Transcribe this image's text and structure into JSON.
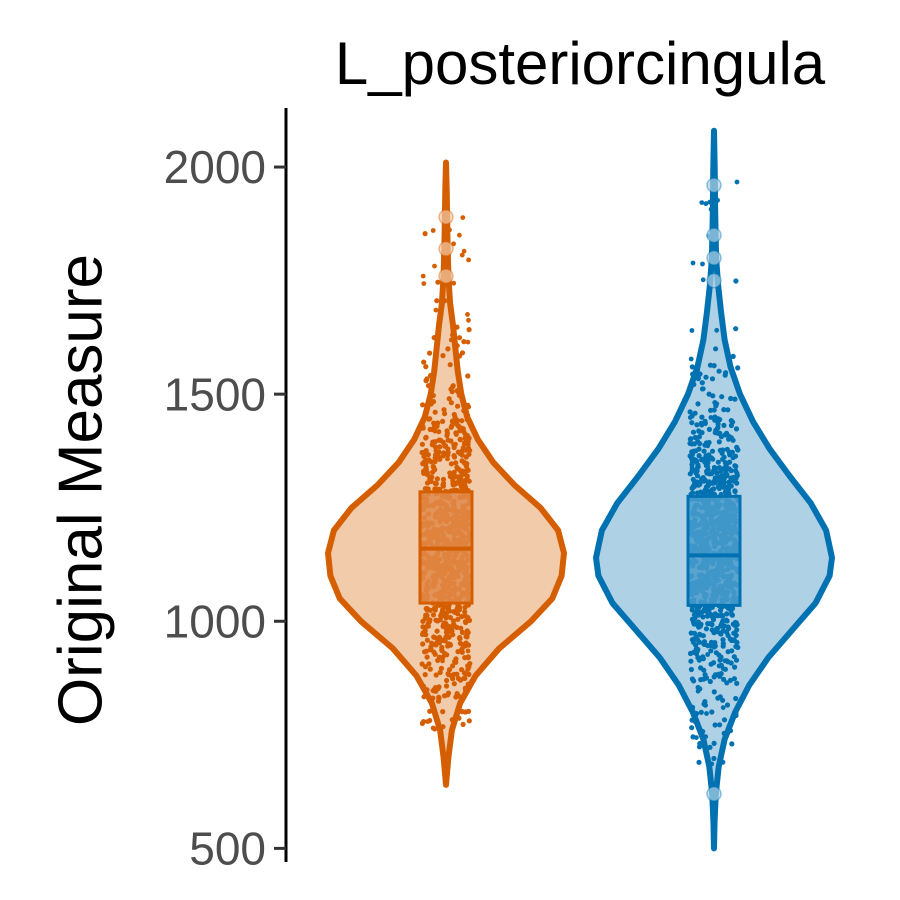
{
  "chart_data": {
    "type": "violin",
    "title": "L_posteriorcingula",
    "xlabel": "",
    "ylabel": "Original Measure",
    "ylim": [
      470,
      2130
    ],
    "yticks": [
      500,
      1000,
      1500,
      2000
    ],
    "grid": false,
    "legend": "none",
    "groups": [
      {
        "color": "#d55e00",
        "fill": "#f2cbaa",
        "box_fill": "#e0894a",
        "min": 640,
        "max": 2010,
        "q1": 1040,
        "median": 1160,
        "q3": 1285,
        "outliers": [
          1890,
          1820,
          1760
        ],
        "points_range": [
          760,
          1900
        ],
        "density": [
          [
            640,
            0.0
          ],
          [
            700,
            0.02
          ],
          [
            760,
            0.05
          ],
          [
            820,
            0.12
          ],
          [
            880,
            0.25
          ],
          [
            940,
            0.45
          ],
          [
            1000,
            0.72
          ],
          [
            1050,
            0.9
          ],
          [
            1100,
            0.98
          ],
          [
            1150,
            1.0
          ],
          [
            1200,
            0.95
          ],
          [
            1250,
            0.8
          ],
          [
            1300,
            0.58
          ],
          [
            1350,
            0.4
          ],
          [
            1400,
            0.27
          ],
          [
            1450,
            0.18
          ],
          [
            1500,
            0.13
          ],
          [
            1550,
            0.1
          ],
          [
            1600,
            0.08
          ],
          [
            1650,
            0.06
          ],
          [
            1700,
            0.035
          ],
          [
            1760,
            0.02
          ],
          [
            1850,
            0.012
          ],
          [
            1950,
            0.006
          ],
          [
            2010,
            0.0
          ]
        ]
      },
      {
        "color": "#0072b2",
        "fill": "#afd1e6",
        "box_fill": "#4a9ccb",
        "min": 500,
        "max": 2080,
        "q1": 1035,
        "median": 1145,
        "q3": 1275,
        "outliers": [
          1960,
          1850,
          1800,
          1750,
          620
        ],
        "points_range": [
          680,
          1970
        ],
        "density": [
          [
            500,
            0.0
          ],
          [
            560,
            0.005
          ],
          [
            620,
            0.015
          ],
          [
            680,
            0.04
          ],
          [
            740,
            0.09
          ],
          [
            800,
            0.18
          ],
          [
            860,
            0.3
          ],
          [
            920,
            0.46
          ],
          [
            980,
            0.66
          ],
          [
            1040,
            0.86
          ],
          [
            1100,
            0.98
          ],
          [
            1140,
            1.0
          ],
          [
            1200,
            0.95
          ],
          [
            1260,
            0.82
          ],
          [
            1320,
            0.64
          ],
          [
            1380,
            0.47
          ],
          [
            1440,
            0.33
          ],
          [
            1500,
            0.22
          ],
          [
            1560,
            0.14
          ],
          [
            1620,
            0.09
          ],
          [
            1680,
            0.06
          ],
          [
            1740,
            0.035
          ],
          [
            1800,
            0.018
          ],
          [
            1900,
            0.01
          ],
          [
            2000,
            0.006
          ],
          [
            2080,
            0.0
          ]
        ]
      }
    ]
  }
}
